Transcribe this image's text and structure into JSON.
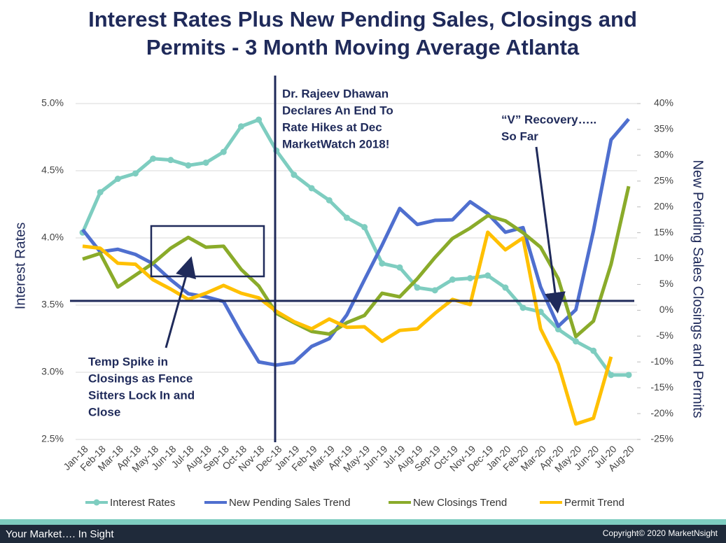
{
  "chart_data": {
    "type": "line",
    "title": [
      "Interest Rates Plus New Pending Sales, Closings and",
      "Permits - 3 Month Moving Average Atlanta"
    ],
    "ylabel": "Interest Rates",
    "y2label": "New Pending Sales Closings and Permits",
    "categories": [
      "Jan-18",
      "Feb-18",
      "Mar-18",
      "Apr-18",
      "May-18",
      "Jun-18",
      "Jul-18",
      "Aug-18",
      "Sep-18",
      "Oct-18",
      "Nov-18",
      "Dec-18",
      "Jan-19",
      "Feb-19",
      "Mar-19",
      "Apr-19",
      "May-19",
      "Jun-19",
      "Jul-19",
      "Aug-19",
      "Sep-19",
      "Oct-19",
      "Nov-19",
      "Dec-19",
      "Jan-20",
      "Feb-20",
      "Mar-20",
      "Apr-20",
      "May-20",
      "Jun-20",
      "Jul-20",
      "Aug-20"
    ],
    "ylim": [
      2.5,
      5.0
    ],
    "yticks": [
      {
        "value": 2.5,
        "label": "2.5%"
      },
      {
        "value": 3.0,
        "label": "3.0%"
      },
      {
        "value": 3.5,
        "label": "3.5%"
      },
      {
        "value": 4.0,
        "label": "4.0%"
      },
      {
        "value": 4.5,
        "label": "4.5%"
      },
      {
        "value": 5.0,
        "label": "5.0%"
      }
    ],
    "y2lim": [
      -25,
      40
    ],
    "y2ticks": [
      {
        "value": -25,
        "label": "-25%"
      },
      {
        "value": -20,
        "label": "-20%"
      },
      {
        "value": -15,
        "label": "-15%"
      },
      {
        "value": -10,
        "label": "-10%"
      },
      {
        "value": -5,
        "label": "-5%"
      },
      {
        "value": 0,
        "label": "0%"
      },
      {
        "value": 5,
        "label": "5%"
      },
      {
        "value": 10,
        "label": "10%"
      },
      {
        "value": 15,
        "label": "15%"
      },
      {
        "value": 20,
        "label": "20%"
      },
      {
        "value": 25,
        "label": "25%"
      },
      {
        "value": 30,
        "label": "30%"
      },
      {
        "value": 35,
        "label": "35%"
      },
      {
        "value": 40,
        "label": "40%"
      }
    ],
    "grid": true,
    "series": [
      {
        "name": "Interest Rates",
        "color": "#7ecdc0",
        "markers": true,
        "values": [
          4.04,
          4.34,
          4.44,
          4.48,
          4.59,
          4.58,
          4.54,
          4.56,
          4.64,
          4.83,
          4.88,
          4.65,
          4.47,
          4.37,
          4.28,
          4.15,
          4.08,
          3.81,
          3.78,
          3.63,
          3.61,
          3.69,
          3.7,
          3.72,
          3.63,
          3.48,
          3.45,
          3.32,
          3.23,
          3.16,
          2.98,
          2.98
        ]
      },
      {
        "name": "New Pending Sales Trend",
        "color": "#4f6fcf",
        "axis": "y2",
        "values": [
          15.6,
          11.3,
          11.8,
          10.8,
          9.0,
          5.9,
          3.2,
          2.6,
          1.7,
          -4.4,
          -10.0,
          -10.6,
          -10.1,
          -7.0,
          -5.5,
          -0.9,
          5.9,
          12.6,
          19.7,
          16.6,
          17.4,
          17.5,
          21.0,
          18.7,
          15.1,
          16.0,
          4.5,
          -3.1,
          0.1,
          15.4,
          33.0,
          37.0
        ]
      },
      {
        "name": "New Closings Trend",
        "color": "#8aab2a",
        "axis": "y2",
        "values": [
          9.9,
          11.0,
          4.5,
          6.8,
          9.1,
          12.0,
          14.1,
          12.2,
          12.4,
          7.9,
          4.7,
          -0.6,
          -2.4,
          -4.1,
          -4.6,
          -2.4,
          -1.0,
          3.3,
          2.6,
          6.1,
          10.2,
          13.9,
          15.9,
          18.3,
          17.3,
          15.0,
          12.2,
          6.1,
          -5.1,
          -2.1,
          8.9,
          24.0
        ]
      },
      {
        "name": "Permit Trend",
        "color": "#ffc000",
        "axis": "y2",
        "values": [
          12.4,
          12.0,
          9.1,
          8.9,
          5.9,
          4.1,
          2.1,
          3.3,
          4.8,
          3.3,
          2.4,
          -0.2,
          -2.2,
          -3.6,
          -1.7,
          -3.3,
          -3.2,
          -6.0,
          -3.9,
          -3.6,
          -0.6,
          2.1,
          1.1,
          15.1,
          11.7,
          14.0,
          -3.6,
          -10.4,
          -22.0,
          -20.9,
          -9.0,
          null
        ]
      }
    ],
    "annotations": [
      {
        "lines": [
          "Dr. Rajeev Dhawan",
          "Declares An End To",
          "Rate Hikes at Dec",
          "MarketWatch 2018!"
        ]
      },
      {
        "lines": [
          "“V” Recovery…..",
          "So Far"
        ]
      },
      {
        "lines": [
          "Temp Spike in",
          "Closings as Fence",
          "Sitters Lock In and",
          "Close"
        ]
      }
    ]
  },
  "footer": {
    "left": "Your Market….  In Sight",
    "right": "Copyright© 2020 MarketNsight"
  }
}
